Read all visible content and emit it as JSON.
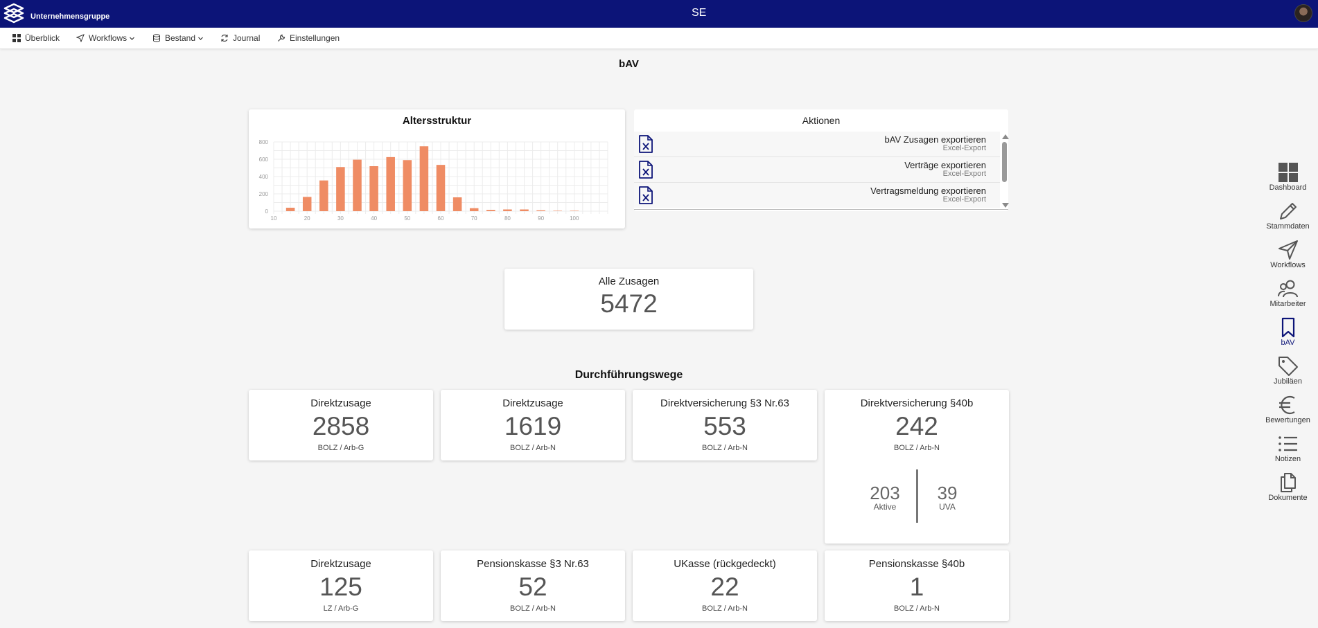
{
  "header": {
    "brand": "Unternehmensgruppe",
    "center_title": "SE"
  },
  "nav": {
    "items": [
      {
        "label": "Überblick",
        "icon": "grid-icon",
        "dropdown": false
      },
      {
        "label": "Workflows",
        "icon": "send-icon",
        "dropdown": true
      },
      {
        "label": "Bestand",
        "icon": "database-icon",
        "dropdown": true
      },
      {
        "label": "Journal",
        "icon": "refresh-icon",
        "dropdown": false
      },
      {
        "label": "Einstellungen",
        "icon": "wrench-icon",
        "dropdown": false
      }
    ]
  },
  "page": {
    "title": "bAV",
    "section_title": "Durchführungswege"
  },
  "chart": {
    "title": "Altersstruktur",
    "bar_color": "#ef8c64"
  },
  "chart_data": {
    "type": "bar",
    "title": "Altersstruktur",
    "x": [
      15,
      20,
      25,
      30,
      35,
      40,
      45,
      50,
      55,
      60,
      65,
      70,
      75,
      80,
      85,
      90,
      95,
      100
    ],
    "values": [
      40,
      165,
      355,
      510,
      595,
      520,
      625,
      590,
      750,
      535,
      160,
      35,
      15,
      20,
      20,
      10,
      5,
      5
    ],
    "xticks": [
      "10",
      "20",
      "30",
      "40",
      "50",
      "60",
      "70",
      "80",
      "90",
      "100"
    ],
    "yticks": [
      "0",
      "200",
      "400",
      "600",
      "800"
    ],
    "ylim": [
      0,
      800
    ],
    "xlim": [
      10,
      110
    ],
    "grid": true,
    "xlabel": "",
    "ylabel": ""
  },
  "actions": {
    "title": "Aktionen",
    "items": [
      {
        "title": "bAV Zusagen exportieren",
        "subtitle": "Excel-Export"
      },
      {
        "title": "Verträge exportieren",
        "subtitle": "Excel-Export"
      },
      {
        "title": "Vertragsmeldung exportieren",
        "subtitle": "Excel-Export"
      }
    ]
  },
  "total": {
    "label": "Alle Zusagen",
    "value": "5472"
  },
  "stats": [
    {
      "label": "Direktzusage",
      "value": "2858",
      "sub": "BOLZ / Arb-G"
    },
    {
      "label": "Direktzusage",
      "value": "1619",
      "sub": "BOLZ / Arb-N"
    },
    {
      "label": "Direktversicherung §3 Nr.63",
      "value": "553",
      "sub": "BOLZ / Arb-N"
    },
    {
      "label": "Direktversicherung §40b",
      "value": "242",
      "sub": "BOLZ / Arb-N",
      "split": {
        "left_value": "203",
        "left_label": "Aktive",
        "right_value": "39",
        "right_label": "UVA"
      }
    },
    {
      "label": "Direktzusage",
      "value": "125",
      "sub": "LZ / Arb-G"
    },
    {
      "label": "Pensionskasse §3 Nr.63",
      "value": "52",
      "sub": "BOLZ / Arb-N"
    },
    {
      "label": "UKasse (rückgedeckt)",
      "value": "22",
      "sub": "BOLZ / Arb-N"
    },
    {
      "label": "Pensionskasse §40b",
      "value": "1",
      "sub": "BOLZ / Arb-N"
    }
  ],
  "sidebar": {
    "items": [
      {
        "label": "Dashboard",
        "icon": "dashboard-icon",
        "active": false
      },
      {
        "label": "Stammdaten",
        "icon": "pencil-icon",
        "active": false
      },
      {
        "label": "Workflows",
        "icon": "send-icon",
        "active": false
      },
      {
        "label": "Mitarbeiter",
        "icon": "users-icon",
        "active": false
      },
      {
        "label": "bAV",
        "icon": "bookmark-icon",
        "active": true
      },
      {
        "label": "Jubiläen",
        "icon": "tag-icon",
        "active": false
      },
      {
        "label": "Bewertungen",
        "icon": "euro-icon",
        "active": false
      },
      {
        "label": "Notizen",
        "icon": "list-icon",
        "active": false
      },
      {
        "label": "Dokumente",
        "icon": "documents-icon",
        "active": false
      }
    ],
    "active_color": "#0c1478"
  }
}
